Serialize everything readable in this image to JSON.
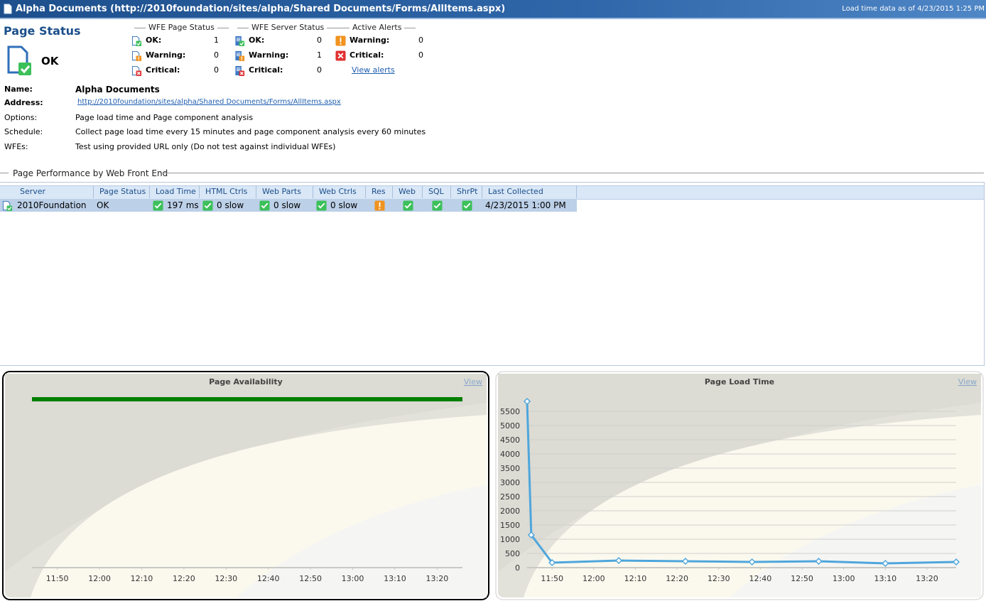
{
  "header": {
    "title": "Alpha Documents (http://2010foundation/sites/alpha/Shared Documents/Forms/AllItems.aspx)",
    "load_time": "Load time data as of 4/23/2015 1:25 PM"
  },
  "page_status": {
    "title": "Page Status",
    "status": "OK"
  },
  "wfe_page_status": {
    "title": "WFE Page Status",
    "rows": [
      {
        "label": "OK:",
        "count": 1
      },
      {
        "label": "Warning:",
        "count": 0
      },
      {
        "label": "Critical:",
        "count": 0
      }
    ]
  },
  "wfe_server_status": {
    "title": "WFE Server Status",
    "rows": [
      {
        "label": "OK:",
        "count": 0
      },
      {
        "label": "Warning:",
        "count": 1
      },
      {
        "label": "Critical:",
        "count": 0
      }
    ]
  },
  "active_alerts": {
    "title": "Active Alerts",
    "rows": [
      {
        "label": "Warning:",
        "count": 0
      },
      {
        "label": "Critical:",
        "count": 0
      }
    ],
    "link": "View alerts"
  },
  "details": [
    {
      "label": "Name:",
      "value": "Alpha Documents"
    },
    {
      "label": "Address:",
      "value": "http://2010foundation/sites/alpha/Shared Documents/Forms/AllItems.aspx"
    },
    {
      "label": "Options:",
      "value": "Page load time and Page component analysis"
    },
    {
      "label": "Schedule:",
      "value": "Collect page load time every 15 minutes and page component analysis every 60 minutes"
    },
    {
      "label": "WFEs:",
      "value": "Test using provided URL only (Do not test against individual WFEs)"
    }
  ],
  "performance": {
    "title": "Page Performance by Web Front End",
    "columns": [
      "Server",
      "Page Status",
      "Load Time",
      "HTML Ctrls",
      "Web Parts",
      "Web Ctrls",
      "Res",
      "Web",
      "SQL",
      "ShrPt",
      "Last Collected"
    ],
    "row_icon": "page-ok",
    "rows": [
      [
        {
          "text": "2010Foundation"
        },
        {
          "text": "OK"
        },
        {
          "icon": "ok",
          "text": "197 ms"
        },
        {
          "icon": "ok",
          "text": "0 slow"
        },
        {
          "icon": "ok",
          "text": "0 slow"
        },
        {
          "icon": "ok",
          "text": "0 slow"
        },
        {
          "icon": "warning"
        },
        {
          "icon": "ok"
        },
        {
          "icon": "ok"
        },
        {
          "icon": "ok"
        },
        {
          "text": "4/23/2015 1:00 PM"
        }
      ]
    ]
  },
  "chart_data": [
    {
      "type": "timeline",
      "title": "Page Availability",
      "link": "View",
      "xlim": [
        "11:44",
        "13:26"
      ],
      "xticks": [
        "11:50",
        "12:00",
        "12:10",
        "12:20",
        "12:30",
        "12:40",
        "12:50",
        "13:00",
        "13:10",
        "13:20"
      ],
      "spans": [
        {
          "start": "11:44",
          "end": "13:26",
          "color": "#008000"
        }
      ]
    },
    {
      "type": "line",
      "title": "Page Load Time",
      "link": "View",
      "xlim": [
        "11:44",
        "13:27"
      ],
      "ylim": [
        0,
        5900
      ],
      "xticks": [
        "11:50",
        "12:00",
        "12:10",
        "12:20",
        "12:30",
        "12:40",
        "12:50",
        "13:00",
        "13:10",
        "13:20"
      ],
      "yticks": [
        0,
        500,
        1000,
        1500,
        2000,
        2500,
        3000,
        3500,
        4000,
        4500,
        5000,
        5500
      ],
      "grid": true,
      "x": [
        "11:44",
        "11:45",
        "11:50",
        "12:06",
        "12:22",
        "12:38",
        "12:54",
        "13:10",
        "13:27"
      ],
      "series": [
        {
          "color": "#4ea6dc",
          "values": [
            5850,
            1150,
            175,
            250,
            225,
            200,
            225,
            150,
            200
          ]
        }
      ]
    }
  ]
}
